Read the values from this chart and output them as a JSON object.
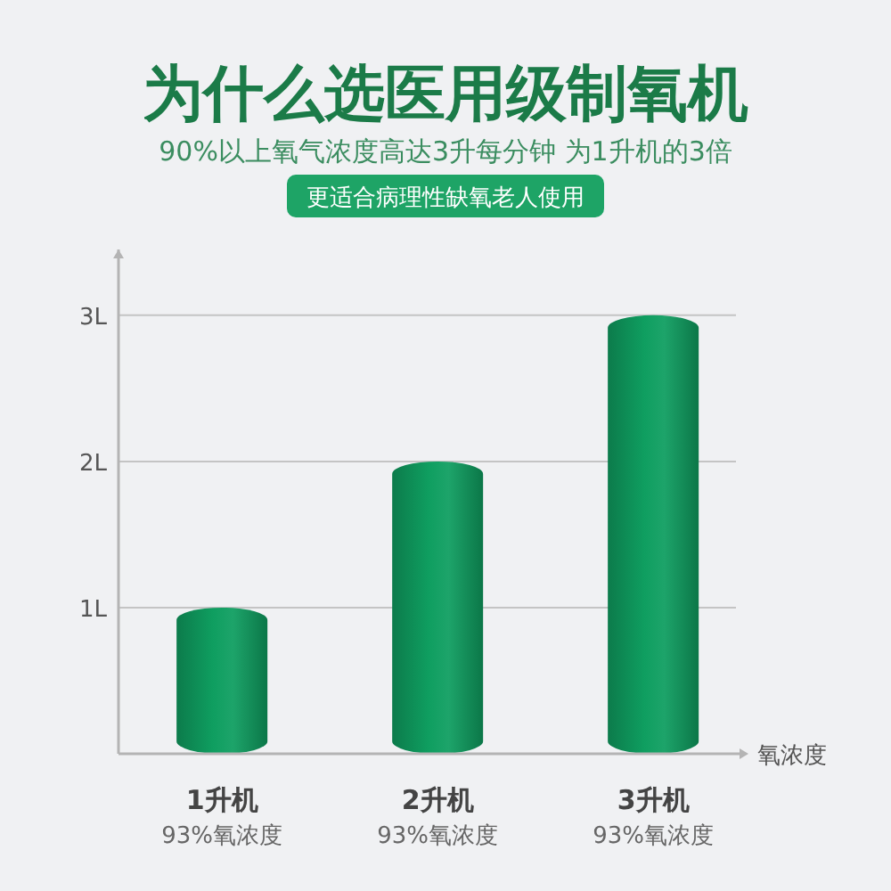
{
  "chart_data": {
    "type": "bar",
    "title": "为什么选医用级制氧机",
    "subtitle": "90%以上氧气浓度高达3升每分钟 为1升机的3倍",
    "annotations": [
      "更适合病理性缺氧老人使用"
    ],
    "categories": [
      "1升机\n93%氧浓度",
      "2升机\n93%氧浓度",
      "3升机\n93%氧浓度"
    ],
    "values": [
      1,
      2,
      3
    ],
    "color": "#0f9e60",
    "xlabel": "氧浓度",
    "ylim": [
      0,
      3.45
    ],
    "yticks": [
      {
        "value": 1,
        "label": "1L"
      },
      {
        "value": 2,
        "label": "2L"
      },
      {
        "value": 3,
        "label": "3L"
      }
    ],
    "grid": "y"
  }
}
